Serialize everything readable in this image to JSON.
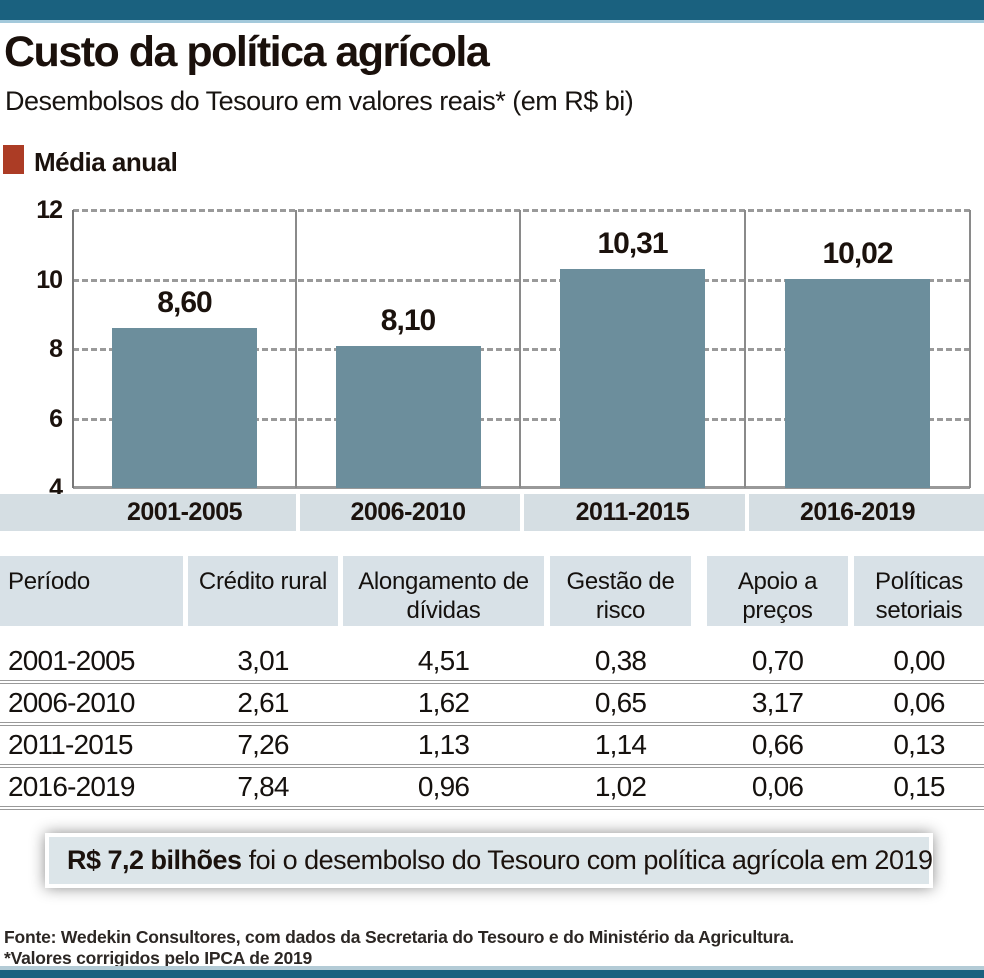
{
  "header": {
    "title": "Custo da política agrícola",
    "subtitle": "Desembolsos do Tesouro em valores reais* (em R$ bi)"
  },
  "legend": {
    "label": "Média anual",
    "swatch_color": "#ac3c25"
  },
  "chart_data": {
    "type": "bar",
    "title": "Custo da política agrícola",
    "subtitle": "Desembolsos do Tesouro em valores reais* (em R$ bi)",
    "legend": "Média anual",
    "categories": [
      "2001-2005",
      "2006-2010",
      "2011-2015",
      "2016-2019"
    ],
    "values": [
      8.6,
      8.1,
      10.31,
      10.02
    ],
    "value_labels": [
      "8,60",
      "8,10",
      "10,31",
      "10,02"
    ],
    "ylim": [
      4,
      12
    ],
    "yticks": [
      4,
      6,
      8,
      10,
      12
    ],
    "grid": "horizontal-dashed",
    "legend_position": "top-left",
    "bar_color": "#6c8e9c",
    "category_strip_color": "#d5dee3"
  },
  "table": {
    "columns": [
      "Período",
      "Crédito rural",
      "Alongamento de dívidas",
      "Gestão de risco",
      "Apoio a preços",
      "Políticas setoriais"
    ],
    "rows": [
      {
        "period": "2001-2005",
        "values": [
          "3,01",
          "4,51",
          "0,38",
          "0,70",
          "0,00"
        ]
      },
      {
        "period": "2006-2010",
        "values": [
          "2,61",
          "1,62",
          "0,65",
          "3,17",
          "0,06"
        ]
      },
      {
        "period": "2011-2015",
        "values": [
          "7,26",
          "1,13",
          "1,14",
          "0,66",
          "0,13"
        ]
      },
      {
        "period": "2016-2019",
        "values": [
          "7,84",
          "0,96",
          "1,02",
          "0,06",
          "0,15"
        ]
      }
    ]
  },
  "highlight": {
    "bold": "R$ 7,2 bilhões",
    "rest": " foi o desembolso do Tesouro com política agrícola em 2019"
  },
  "footer": {
    "source": "Fonte: Wedekin Consultores, com dados da Secretaria do Tesouro e do Ministério da Agricultura.",
    "note": "*Valores corrigidos pelo IPCA de 2019"
  },
  "colors": {
    "band_teal": "#1a617f",
    "band_light_blue": "#a3c9db",
    "bar": "#6c8e9c",
    "legend_red": "#ac3c25",
    "strip": "#d5dee3",
    "table_header_bg": "#d8e1e7",
    "highlight_bg": "#dce5e9"
  }
}
